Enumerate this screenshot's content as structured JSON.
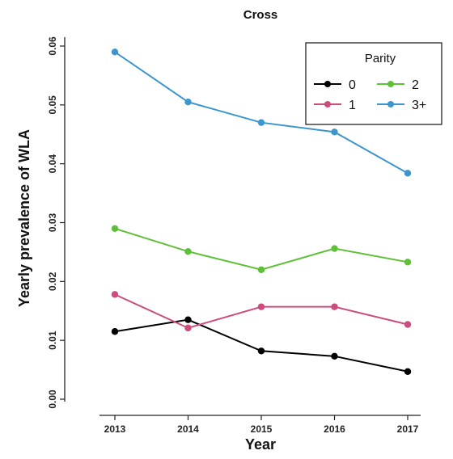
{
  "chart_data": {
    "type": "line",
    "title": "Cross",
    "xlabel": "Year",
    "ylabel": "Yearly prevalence of WLA",
    "categories": [
      "2013",
      "2014",
      "2015",
      "2016",
      "2017"
    ],
    "y_ticks": [
      "0.00",
      "0.01",
      "0.02",
      "0.03",
      "0.04",
      "0.05",
      "0.06"
    ],
    "ylim": [
      0,
      0.06
    ],
    "grid": false,
    "legend": {
      "title": "Parity",
      "placement": "top-right"
    },
    "series": [
      {
        "name": "0",
        "color": "#000000",
        "values": [
          0.0115,
          0.0135,
          0.0082,
          0.0073,
          0.0047
        ]
      },
      {
        "name": "1",
        "color": "#CC4C7E",
        "values": [
          0.0178,
          0.0121,
          0.0157,
          0.0157,
          0.0127
        ]
      },
      {
        "name": "2",
        "color": "#5DC038",
        "values": [
          0.029,
          0.0251,
          0.022,
          0.0256,
          0.0233
        ]
      },
      {
        "name": "3+",
        "color": "#3B96D0",
        "values": [
          0.059,
          0.0505,
          0.047,
          0.0454,
          0.0384
        ]
      }
    ]
  }
}
